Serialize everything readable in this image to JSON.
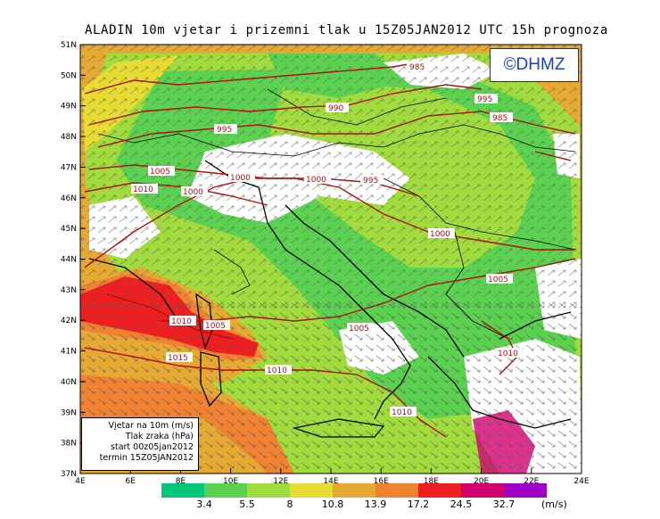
{
  "title": "ALADIN 10m vjetar i prizemni tlak u 15Z05JAN2012 UTC 15h prognoza",
  "logo": "©DHMZ",
  "lat_labels": [
    "51N",
    "50N",
    "49N",
    "48N",
    "47N",
    "46N",
    "45N",
    "44N",
    "43N",
    "42N",
    "41N",
    "40N",
    "39N",
    "38N",
    "37N"
  ],
  "lon_labels": [
    "4E",
    "6E",
    "8E",
    "10E",
    "12E",
    "14E",
    "16E",
    "18E",
    "20E",
    "22E",
    "24E"
  ],
  "isobar_labels": [
    "985",
    "990",
    "995",
    "985",
    "995",
    "1005",
    "1010",
    "1000",
    "1000",
    "1000",
    "995",
    "1000",
    "1005",
    "1010",
    "1005",
    "1005",
    "1015",
    "1010",
    "1010",
    "1010"
  ],
  "info_box": [
    "Vjetar na 10m (m/s)",
    "Tlak zraka (hPa)",
    "start 00z05jan2012",
    "termin 15Z05JAN2012"
  ],
  "colorbar": {
    "labels": [
      "3.4",
      "5.5",
      "8",
      "10.8",
      "13.9",
      "17.2",
      "24.5",
      "32.7"
    ],
    "units": "(m/s)",
    "colors": [
      "#00c878",
      "#5ad250",
      "#a0dc3c",
      "#e6dc32",
      "#e6aa32",
      "#f08232",
      "#f01e1e",
      "#d2006e",
      "#a000c8"
    ]
  }
}
